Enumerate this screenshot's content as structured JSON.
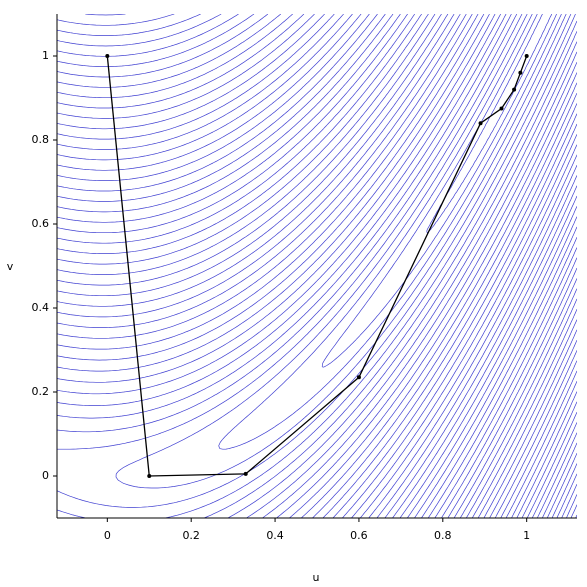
{
  "chart_data": {
    "type": "line",
    "x_label": "u",
    "y_label": "v",
    "series": [
      {
        "color": "#000000",
        "x": [
          0,
          0.1,
          0.33,
          0.6,
          0.89,
          0.94,
          0.97,
          0.985,
          1
        ],
        "values": [
          1,
          0,
          0.005,
          0.235,
          0.84,
          0.875,
          0.92,
          0.96,
          1
        ]
      }
    ],
    "xlim": [
      -0.12,
      1.12
    ],
    "ylim": [
      -0.1,
      1.1
    ],
    "xticks": [
      0,
      0.2,
      0.4,
      0.6,
      0.8,
      1
    ],
    "yticks": [
      0,
      0.2,
      0.4,
      0.6,
      0.8,
      1
    ]
  }
}
